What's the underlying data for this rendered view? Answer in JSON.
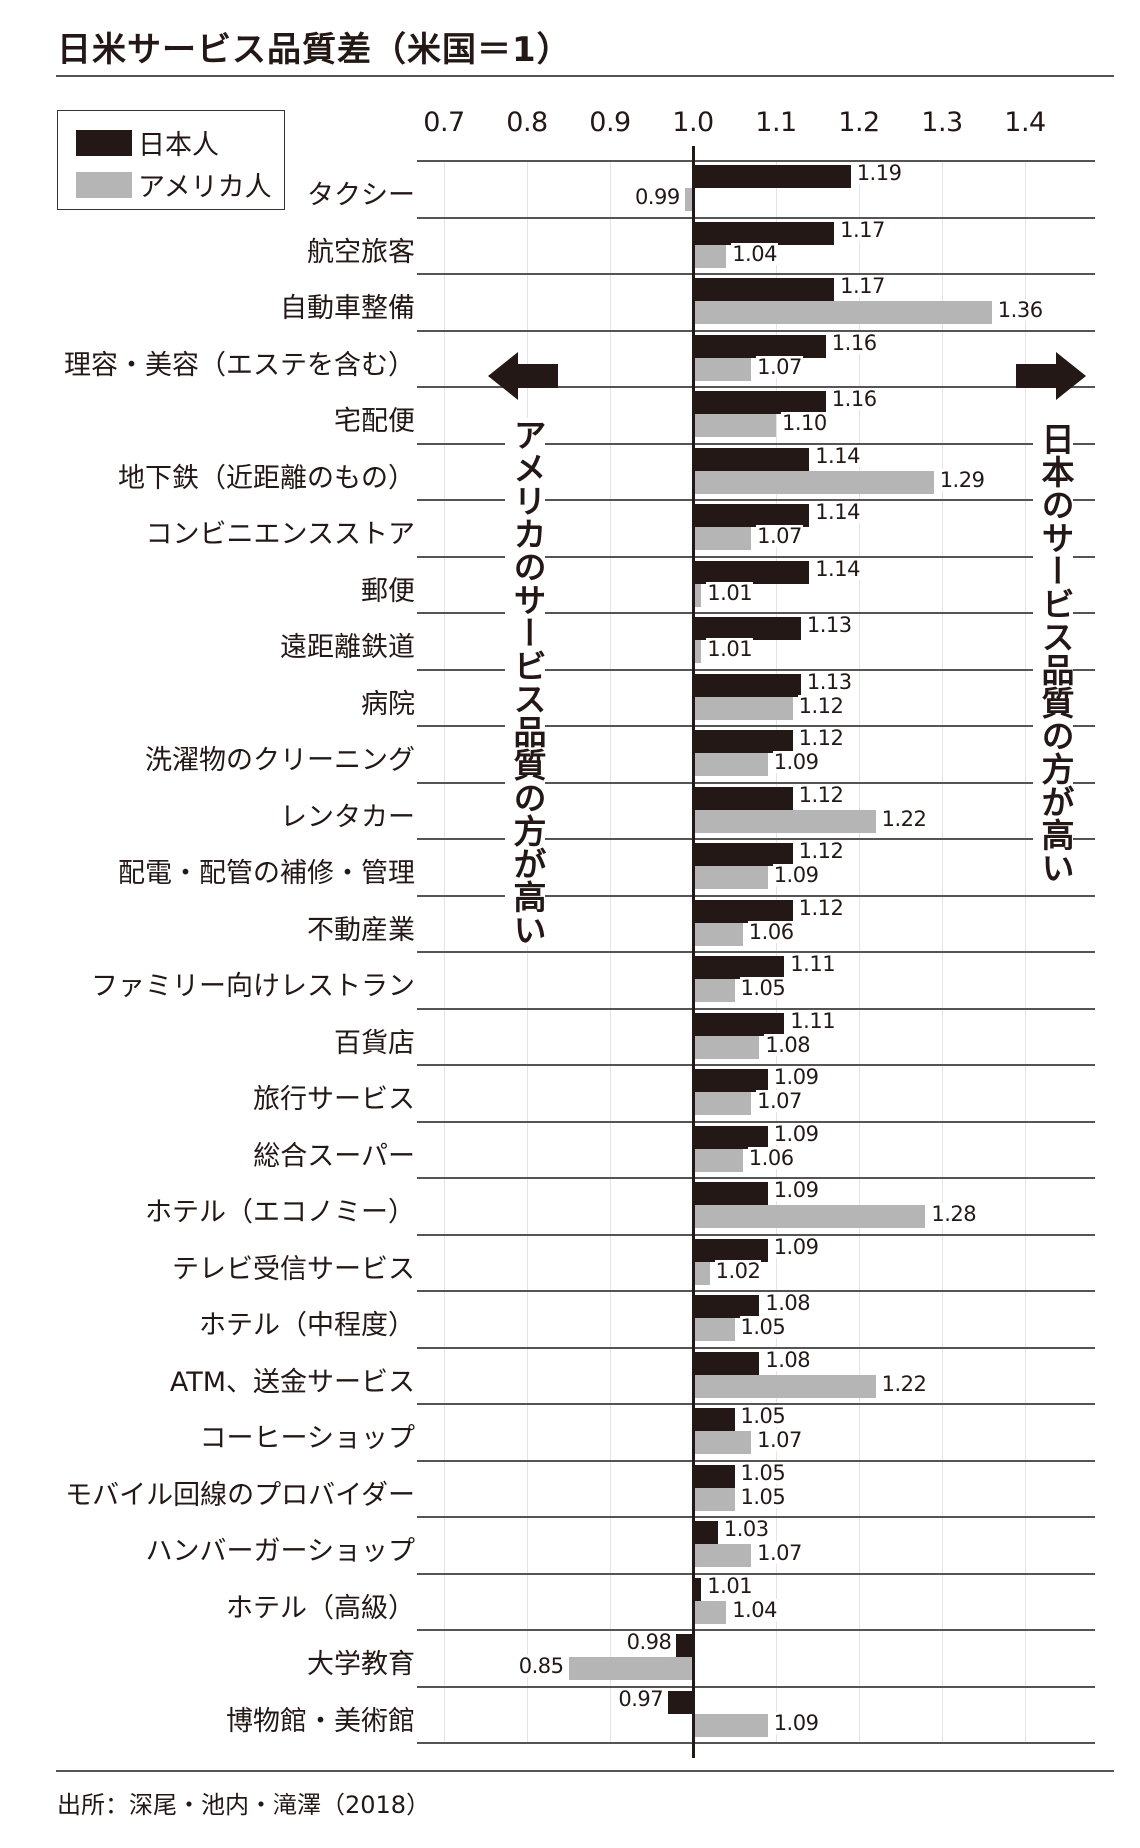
{
  "header": {
    "title": "日米サービス品質差（米国＝1）"
  },
  "legend": {
    "items": [
      {
        "label": "日本人",
        "color": "#231815"
      },
      {
        "label": "アメリカ人",
        "color": "#b5b5b5"
      }
    ]
  },
  "annotations": {
    "left_arrow_text": "アメリカのサービス品質の方が高い",
    "right_arrow_text": "日本のサービス品質の方が高い"
  },
  "footer": {
    "source": "出所：深尾・池内・滝澤（2018）"
  },
  "chart_data": {
    "type": "bar",
    "orientation": "horizontal",
    "title": "日米サービス品質差（米国＝1）",
    "xlabel": "",
    "ylabel": "",
    "baseline": 1.0,
    "xlim": [
      0.7,
      1.45
    ],
    "x_ticks": [
      "0.7",
      "0.8",
      "0.9",
      "1.0",
      "1.1",
      "1.2",
      "1.3",
      "1.4"
    ],
    "grid": true,
    "legend_position": "top-left",
    "categories": [
      "タクシー",
      "航空旅客",
      "自動車整備",
      "理容・美容（エステを含む）",
      "宅配便",
      "地下鉄（近距離のもの）",
      "コンビニエンスストア",
      "郵便",
      "遠距離鉄道",
      "病院",
      "洗濯物のクリーニング",
      "レンタカー",
      "配電・配管の補修・管理",
      "不動産業",
      "ファミリー向けレストラン",
      "百貨店",
      "旅行サービス",
      "総合スーパー",
      "ホテル（エコノミー）",
      "テレビ受信サービス",
      "ホテル（中程度）",
      "ATM、送金サービス",
      "コーヒーショップ",
      "モバイル回線のプロバイダー",
      "ハンバーガーショップ",
      "ホテル（高級）",
      "大学教育",
      "博物館・美術館"
    ],
    "series": [
      {
        "name": "日本人",
        "color": "#231815",
        "values": [
          1.19,
          1.17,
          1.17,
          1.16,
          1.16,
          1.14,
          1.14,
          1.14,
          1.13,
          1.13,
          1.12,
          1.12,
          1.12,
          1.12,
          1.11,
          1.11,
          1.09,
          1.09,
          1.09,
          1.09,
          1.08,
          1.08,
          1.05,
          1.05,
          1.03,
          1.01,
          0.98,
          0.97
        ]
      },
      {
        "name": "アメリカ人",
        "color": "#b5b5b5",
        "values": [
          0.99,
          1.04,
          1.36,
          1.07,
          1.1,
          1.29,
          1.07,
          1.01,
          1.01,
          1.12,
          1.09,
          1.22,
          1.09,
          1.06,
          1.05,
          1.08,
          1.07,
          1.06,
          1.28,
          1.02,
          1.05,
          1.22,
          1.07,
          1.05,
          1.07,
          1.04,
          0.85,
          1.09
        ]
      }
    ],
    "value_labels": {
      "jp": [
        "1.19",
        "1.17",
        "1.17",
        "1.16",
        "1.16",
        "1.14",
        "1.14",
        "1.14",
        "1.13",
        "1.13",
        "1.12",
        "1.12",
        "1.12",
        "1.12",
        "1.11",
        "1.11",
        "1.09",
        "1.09",
        "1.09",
        "1.09",
        "1.08",
        "1.08",
        "1.05",
        "1.05",
        "1.03",
        "1.01",
        "0.98",
        "0.97"
      ],
      "us": [
        "0.99",
        "1.04",
        "1.36",
        "1.07",
        "1.10",
        "1.29",
        "1.07",
        "1.01",
        "1.01",
        "1.12",
        "1.09",
        "1.22",
        "1.09",
        "1.06",
        "1.05",
        "1.08",
        "1.07",
        "1.06",
        "1.28",
        "1.02",
        "1.05",
        "1.22",
        "1.07",
        "1.05",
        "1.07",
        "1.04",
        "0.85",
        "1.09"
      ]
    }
  }
}
